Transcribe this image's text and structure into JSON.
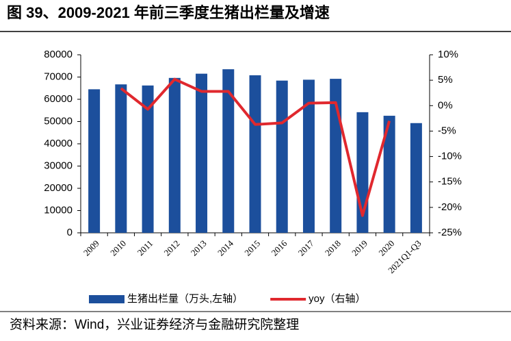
{
  "chart_data": {
    "type": "bar",
    "title": "图 39、2009-2021 年前三季度生猪出栏量及增速",
    "categories": [
      "2009",
      "2010",
      "2011",
      "2012",
      "2013",
      "2014",
      "2015",
      "2016",
      "2017",
      "2018",
      "2019",
      "2020",
      "2021Q1-Q3"
    ],
    "series": [
      {
        "name": "生猪出栏量（万头,左轴）",
        "type": "bar",
        "color": "#1c4f9c",
        "values": [
          64500,
          66700,
          66200,
          69600,
          71500,
          73500,
          70800,
          68400,
          68800,
          69200,
          54200,
          52600,
          49300
        ]
      },
      {
        "name": "yoy（右轴）",
        "type": "line",
        "axis": "y2",
        "color": "#e0282e",
        "values": [
          null,
          3.4,
          -0.7,
          5.2,
          2.8,
          2.8,
          -3.7,
          -3.4,
          0.5,
          0.6,
          -21.6,
          -3.0,
          null
        ]
      }
    ],
    "ylim": [
      0,
      80000
    ],
    "yticks": [
      0,
      10000,
      20000,
      30000,
      40000,
      50000,
      60000,
      70000,
      80000
    ],
    "y2lim": [
      -25,
      10
    ],
    "y2ticks": [
      {
        "value": -25,
        "label": "-25%"
      },
      {
        "value": -20,
        "label": "-20%"
      },
      {
        "value": -15,
        "label": "-15%"
      },
      {
        "value": -10,
        "label": "-10%"
      },
      {
        "value": -5,
        "label": "-5%"
      },
      {
        "value": 0,
        "label": "0%"
      },
      {
        "value": 5,
        "label": "5%"
      },
      {
        "value": 10,
        "label": "10%"
      }
    ],
    "legend": "bottom",
    "source": "资料来源：Wind，兴业证券经济与金融研究院整理"
  }
}
